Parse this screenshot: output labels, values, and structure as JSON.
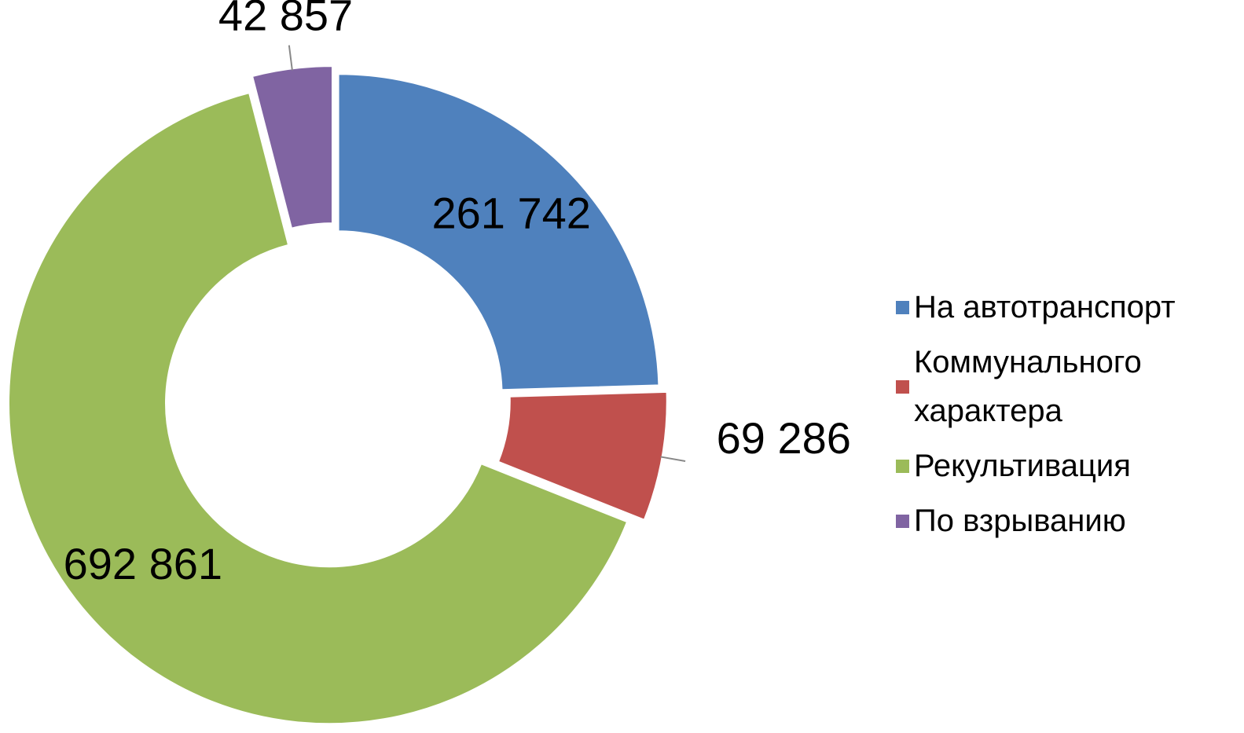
{
  "chart_data": {
    "type": "donut",
    "categories": [
      "На автотранспорт",
      "Коммунального характера",
      "Рекультивация",
      "По взрыванию"
    ],
    "values": [
      261742,
      69286,
      692861,
      42857
    ],
    "value_labels": [
      "261 742",
      "69 286",
      "692 861",
      "42 857"
    ],
    "colors": [
      "#4f81bd",
      "#c0504d",
      "#9bbb59",
      "#8064a2"
    ],
    "legend": "right"
  }
}
